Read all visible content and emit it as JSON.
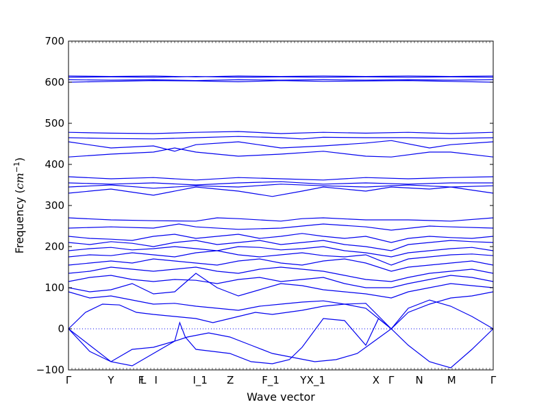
{
  "chart_data": {
    "type": "line",
    "xlabel": "Wave vector",
    "ylabel": "Frequency (",
    "ylabel_unit": "cm",
    "ylabel_exp": "−1",
    "ylabel_close": ")",
    "ylim": [
      -100,
      700
    ],
    "yticks": [
      -100,
      0,
      100,
      200,
      300,
      400,
      500,
      600,
      700
    ],
    "xlim": [
      0,
      1
    ],
    "xticks": [
      {
        "label": "Γ",
        "x": 0.0
      },
      {
        "label": "Y",
        "x": 0.1
      },
      {
        "label": "F",
        "x": 0.171
      },
      {
        "label": "L",
        "x": 0.176
      },
      {
        "label": "I",
        "x": 0.206
      },
      {
        "label": "I_1",
        "x": 0.31
      },
      {
        "label": "Z",
        "x": 0.381
      },
      {
        "label": "F_1",
        "x": 0.476
      },
      {
        "label": "Y",
        "x": 0.553
      },
      {
        "label": "X_1",
        "x": 0.583
      },
      {
        "label": "X",
        "x": 0.724
      },
      {
        "label": "Γ",
        "x": 0.76
      },
      {
        "label": "N",
        "x": 0.826
      },
      {
        "label": "M",
        "x": 0.902
      },
      {
        "label": "Γ",
        "x": 1.0
      }
    ],
    "zero_line": 0,
    "series_color": "#0000ee",
    "series": [
      {
        "x": [
          0,
          0.05,
          0.1,
          0.15,
          0.2,
          0.25,
          0.28,
          0.33,
          0.38,
          0.43,
          0.48,
          0.53,
          0.58,
          0.63,
          0.68,
          0.72,
          0.76,
          0.8,
          0.85,
          0.9,
          0.95,
          1.0
        ],
        "y": [
          0,
          -40,
          -80,
          -90,
          -60,
          -30,
          -20,
          -10,
          -20,
          -40,
          -60,
          -70,
          -80,
          -75,
          -60,
          -30,
          0,
          -40,
          -80,
          -95,
          -50,
          0
        ]
      },
      {
        "x": [
          0,
          0.05,
          0.1,
          0.15,
          0.2,
          0.25,
          0.262,
          0.275,
          0.3,
          0.34,
          0.38,
          0.43,
          0.48,
          0.52,
          0.55,
          0.6,
          0.65,
          0.7,
          0.73,
          0.76
        ],
        "y": [
          0,
          -55,
          -80,
          -50,
          -45,
          -30,
          15,
          -20,
          -50,
          -55,
          -60,
          -80,
          -85,
          -75,
          -45,
          25,
          20,
          -40,
          25,
          0
        ]
      },
      {
        "x": [
          0,
          0.04,
          0.08,
          0.12,
          0.16,
          0.2,
          0.25,
          0.3,
          0.34,
          0.38,
          0.44,
          0.48,
          0.55,
          0.6,
          0.65,
          0.7,
          0.76,
          0.8,
          0.85,
          0.9,
          0.95,
          1.0
        ],
        "y": [
          0,
          40,
          60,
          58,
          40,
          35,
          30,
          25,
          15,
          25,
          40,
          35,
          45,
          55,
          60,
          50,
          0,
          50,
          70,
          55,
          30,
          0
        ]
      },
      {
        "x": [
          0,
          0.05,
          0.1,
          0.15,
          0.2,
          0.25,
          0.3,
          0.35,
          0.4,
          0.45,
          0.5,
          0.55,
          0.6,
          0.65,
          0.7,
          0.76,
          0.8,
          0.85,
          0.9,
          0.95,
          1.0
        ],
        "y": [
          90,
          75,
          80,
          70,
          60,
          62,
          55,
          50,
          45,
          55,
          60,
          65,
          68,
          60,
          62,
          0,
          40,
          60,
          75,
          80,
          90
        ]
      },
      {
        "x": [
          0,
          0.05,
          0.1,
          0.15,
          0.2,
          0.25,
          0.3,
          0.35,
          0.4,
          0.45,
          0.5,
          0.55,
          0.6,
          0.65,
          0.7,
          0.76,
          0.8,
          0.85,
          0.9,
          0.95,
          1.0
        ],
        "y": [
          100,
          90,
          95,
          110,
          85,
          90,
          135,
          100,
          80,
          95,
          110,
          105,
          95,
          90,
          85,
          75,
          90,
          100,
          110,
          105,
          100
        ]
      },
      {
        "x": [
          0,
          0.05,
          0.1,
          0.15,
          0.2,
          0.25,
          0.3,
          0.35,
          0.4,
          0.45,
          0.5,
          0.55,
          0.6,
          0.65,
          0.7,
          0.76,
          0.8,
          0.85,
          0.9,
          0.95,
          1.0
        ],
        "y": [
          115,
          125,
          130,
          120,
          115,
          120,
          118,
          110,
          120,
          125,
          115,
          120,
          125,
          110,
          100,
          100,
          110,
          120,
          130,
          125,
          115
        ]
      },
      {
        "x": [
          0,
          0.05,
          0.1,
          0.15,
          0.2,
          0.25,
          0.3,
          0.35,
          0.4,
          0.45,
          0.5,
          0.55,
          0.6,
          0.65,
          0.7,
          0.76,
          0.8,
          0.85,
          0.9,
          0.95,
          1.0
        ],
        "y": [
          135,
          140,
          150,
          145,
          140,
          145,
          150,
          140,
          135,
          145,
          150,
          145,
          140,
          130,
          120,
          115,
          125,
          135,
          140,
          145,
          135
        ]
      },
      {
        "x": [
          0,
          0.05,
          0.1,
          0.15,
          0.2,
          0.25,
          0.3,
          0.35,
          0.4,
          0.45,
          0.5,
          0.55,
          0.6,
          0.65,
          0.7,
          0.76,
          0.8,
          0.85,
          0.9,
          0.95,
          1.0
        ],
        "y": [
          155,
          160,
          165,
          160,
          170,
          165,
          160,
          155,
          165,
          170,
          160,
          155,
          165,
          170,
          160,
          140,
          150,
          155,
          160,
          165,
          155
        ]
      },
      {
        "x": [
          0,
          0.05,
          0.1,
          0.15,
          0.2,
          0.25,
          0.3,
          0.35,
          0.4,
          0.45,
          0.5,
          0.55,
          0.6,
          0.65,
          0.7,
          0.76,
          0.8,
          0.85,
          0.9,
          0.95,
          1.0
        ],
        "y": [
          175,
          180,
          178,
          185,
          180,
          175,
          185,
          190,
          180,
          175,
          180,
          185,
          178,
          175,
          180,
          155,
          170,
          175,
          180,
          182,
          178
        ]
      },
      {
        "x": [
          0,
          0.05,
          0.1,
          0.15,
          0.2,
          0.25,
          0.3,
          0.35,
          0.4,
          0.45,
          0.5,
          0.55,
          0.6,
          0.65,
          0.7,
          0.76,
          0.8,
          0.85,
          0.9,
          0.95,
          1.0
        ],
        "y": [
          190,
          195,
          198,
          192,
          195,
          200,
          195,
          190,
          200,
          198,
          192,
          195,
          200,
          190,
          185,
          175,
          185,
          190,
          195,
          198,
          190
        ]
      },
      {
        "x": [
          0,
          0.05,
          0.1,
          0.15,
          0.2,
          0.25,
          0.3,
          0.35,
          0.4,
          0.45,
          0.5,
          0.55,
          0.6,
          0.65,
          0.7,
          0.76,
          0.8,
          0.85,
          0.9,
          0.95,
          1.0
        ],
        "y": [
          210,
          205,
          212,
          208,
          200,
          210,
          215,
          205,
          210,
          215,
          205,
          210,
          215,
          205,
          200,
          190,
          205,
          210,
          215,
          212,
          210
        ]
      },
      {
        "x": [
          0,
          0.05,
          0.1,
          0.15,
          0.2,
          0.25,
          0.3,
          0.35,
          0.4,
          0.45,
          0.5,
          0.55,
          0.6,
          0.65,
          0.7,
          0.76,
          0.8,
          0.85,
          0.9,
          0.95,
          1.0
        ],
        "y": [
          225,
          220,
          218,
          215,
          225,
          230,
          220,
          225,
          230,
          220,
          225,
          232,
          225,
          220,
          225,
          210,
          220,
          225,
          222,
          220,
          225
        ]
      },
      {
        "x": [
          0,
          0.1,
          0.2,
          0.26,
          0.3,
          0.4,
          0.5,
          0.6,
          0.7,
          0.76,
          0.85,
          0.9,
          1.0
        ],
        "y": [
          245,
          248,
          245,
          255,
          248,
          242,
          245,
          255,
          248,
          240,
          250,
          248,
          245
        ]
      },
      {
        "x": [
          0,
          0.1,
          0.2,
          0.3,
          0.35,
          0.4,
          0.5,
          0.55,
          0.6,
          0.7,
          0.8,
          0.9,
          1.0
        ],
        "y": [
          270,
          265,
          263,
          262,
          270,
          268,
          262,
          268,
          270,
          265,
          265,
          262,
          270
        ]
      },
      {
        "x": [
          0,
          0.1,
          0.2,
          0.3,
          0.4,
          0.48,
          0.55,
          0.6,
          0.7,
          0.76,
          0.85,
          0.9,
          1.0
        ],
        "y": [
          330,
          340,
          325,
          345,
          335,
          322,
          335,
          345,
          335,
          345,
          340,
          345,
          330
        ]
      },
      {
        "x": [
          0,
          0.1,
          0.2,
          0.3,
          0.4,
          0.5,
          0.6,
          0.7,
          0.8,
          0.9,
          1.0
        ],
        "y": [
          345,
          350,
          342,
          348,
          345,
          352,
          348,
          345,
          350,
          345,
          348
        ]
      },
      {
        "x": [
          0,
          0.1,
          0.2,
          0.3,
          0.4,
          0.5,
          0.6,
          0.7,
          0.8,
          0.9,
          1.0
        ],
        "y": [
          355,
          352,
          355,
          350,
          355,
          358,
          352,
          355,
          352,
          355,
          355
        ]
      },
      {
        "x": [
          0,
          0.1,
          0.2,
          0.3,
          0.4,
          0.5,
          0.6,
          0.7,
          0.8,
          0.9,
          1.0
        ],
        "y": [
          370,
          365,
          368,
          362,
          368,
          365,
          362,
          368,
          365,
          368,
          370
        ]
      },
      {
        "x": [
          0,
          0.1,
          0.2,
          0.25,
          0.3,
          0.4,
          0.5,
          0.6,
          0.7,
          0.76,
          0.85,
          0.9,
          1.0
        ],
        "y": [
          418,
          425,
          430,
          440,
          430,
          420,
          425,
          432,
          420,
          418,
          430,
          430,
          418
        ]
      },
      {
        "x": [
          0,
          0.1,
          0.2,
          0.25,
          0.3,
          0.4,
          0.5,
          0.6,
          0.7,
          0.76,
          0.85,
          0.9,
          1.0
        ],
        "y": [
          455,
          440,
          445,
          432,
          448,
          455,
          440,
          445,
          452,
          458,
          440,
          448,
          455
        ]
      },
      {
        "x": [
          0,
          0.1,
          0.2,
          0.3,
          0.4,
          0.5,
          0.55,
          0.6,
          0.7,
          0.8,
          0.9,
          1.0
        ],
        "y": [
          465,
          463,
          462,
          465,
          468,
          465,
          462,
          466,
          465,
          465,
          463,
          465
        ]
      },
      {
        "x": [
          0,
          0.1,
          0.2,
          0.3,
          0.4,
          0.5,
          0.6,
          0.7,
          0.8,
          0.9,
          1.0
        ],
        "y": [
          478,
          476,
          475,
          478,
          480,
          475,
          478,
          476,
          478,
          475,
          478
        ]
      },
      {
        "x": [
          0,
          0.1,
          0.2,
          0.3,
          0.4,
          0.5,
          0.6,
          0.7,
          0.8,
          0.9,
          1.0
        ],
        "y": [
          600,
          602,
          604,
          603,
          601,
          604,
          602,
          603,
          604,
          602,
          600
        ]
      },
      {
        "x": [
          0,
          0.1,
          0.2,
          0.3,
          0.4,
          0.5,
          0.6,
          0.7,
          0.8,
          0.9,
          1.0
        ],
        "y": [
          606,
          605,
          606,
          604,
          606,
          605,
          606,
          605,
          606,
          605,
          606
        ]
      },
      {
        "x": [
          0,
          0.1,
          0.2,
          0.3,
          0.4,
          0.5,
          0.6,
          0.7,
          0.8,
          0.9,
          1.0
        ],
        "y": [
          612,
          613,
          612,
          614,
          612,
          613,
          612,
          613,
          612,
          613,
          612
        ]
      },
      {
        "x": [
          0,
          0.1,
          0.2,
          0.3,
          0.4,
          0.5,
          0.6,
          0.7,
          0.8,
          0.9,
          1.0
        ],
        "y": [
          615,
          614,
          615,
          613,
          615,
          614,
          615,
          614,
          615,
          614,
          615
        ]
      }
    ]
  }
}
